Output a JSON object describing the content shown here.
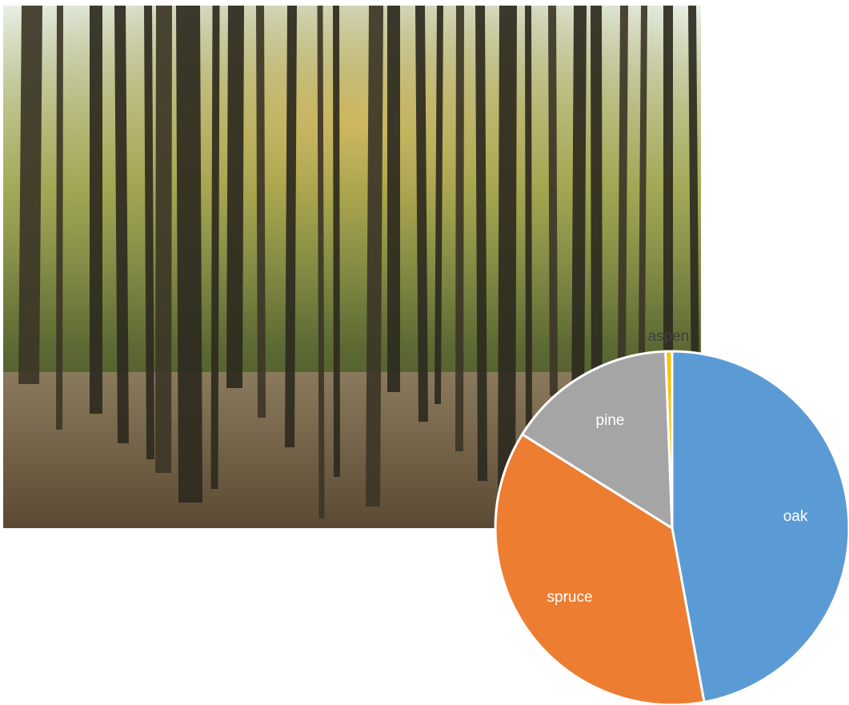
{
  "chart_data": {
    "type": "pie",
    "categories": [
      "oak",
      "spruce",
      "pine",
      "aspen"
    ],
    "values": [
      47.1,
      36.8,
      15.5,
      0.6
    ],
    "colors": [
      "#5b9bd5",
      "#ed7d31",
      "#a5a5a5",
      "#ffc000"
    ]
  }
}
